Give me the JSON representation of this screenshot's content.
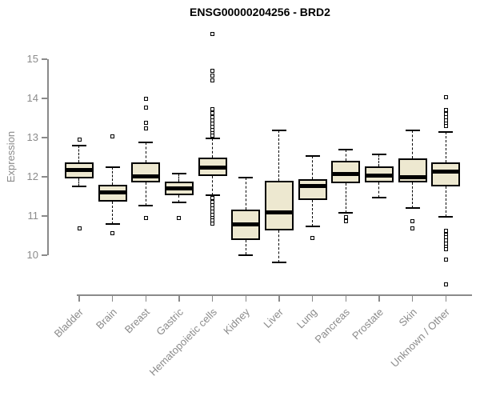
{
  "title": "ENSG00000204256 - BRD2",
  "chart_data": {
    "type": "boxplot",
    "title": "ENSG00000204256 - BRD2",
    "xlabel": "",
    "ylabel": "Expression",
    "ylim": [
      9.0,
      15.8
    ],
    "yticks": [
      10,
      11,
      12,
      13,
      14,
      15
    ],
    "grid": false,
    "categories": [
      "Bladder",
      "Brain",
      "Breast",
      "Gastric",
      "Hematopoietic cells",
      "Kidney",
      "Liver",
      "Lung",
      "Pancreas",
      "Prostate",
      "Skin",
      "Unknown / Other"
    ],
    "boxes": [
      {
        "label": "Bladder",
        "whisker_low": 11.76,
        "q1": 11.96,
        "median": 12.18,
        "q3": 12.37,
        "whisker_high": 12.8,
        "outliers": [
          12.94,
          10.69
        ]
      },
      {
        "label": "Brain",
        "whisker_low": 10.8,
        "q1": 11.37,
        "median": 11.61,
        "q3": 11.8,
        "whisker_high": 12.24,
        "outliers": [
          13.04,
          10.56
        ]
      },
      {
        "label": "Breast",
        "whisker_low": 11.27,
        "q1": 11.85,
        "median": 12.02,
        "q3": 12.37,
        "whisker_high": 12.87,
        "outliers": [
          13.98,
          13.77,
          13.38,
          13.23,
          10.95
        ]
      },
      {
        "label": "Gastric",
        "whisker_low": 11.34,
        "q1": 11.54,
        "median": 11.71,
        "q3": 11.87,
        "whisker_high": 12.09,
        "outliers": [
          10.95
        ]
      },
      {
        "label": "Hematopoietic cells",
        "whisker_low": 11.54,
        "q1": 12.02,
        "median": 12.23,
        "q3": 12.48,
        "whisker_high": 12.97,
        "outliers": [
          15.64,
          14.7,
          14.58,
          14.45,
          13.72,
          13.62,
          13.52,
          13.44,
          13.36,
          13.28,
          13.2,
          13.12,
          13.05,
          11.45,
          11.35,
          11.27,
          11.19,
          11.11,
          11.03,
          10.95,
          10.88,
          10.81
        ]
      },
      {
        "label": "Kidney",
        "whisker_low": 10.01,
        "q1": 10.39,
        "median": 10.78,
        "q3": 11.17,
        "whisker_high": 11.97,
        "outliers": []
      },
      {
        "label": "Liver",
        "whisker_low": 9.81,
        "q1": 10.63,
        "median": 11.1,
        "q3": 11.9,
        "whisker_high": 13.19,
        "outliers": []
      },
      {
        "label": "Lung",
        "whisker_low": 10.74,
        "q1": 11.41,
        "median": 11.77,
        "q3": 11.94,
        "whisker_high": 12.53,
        "outliers": [
          10.43
        ]
      },
      {
        "label": "Pancreas",
        "whisker_low": 11.08,
        "q1": 11.83,
        "median": 12.07,
        "q3": 12.4,
        "whisker_high": 12.7,
        "outliers": [
          10.97,
          10.86
        ]
      },
      {
        "label": "Prostate",
        "whisker_low": 11.47,
        "q1": 11.86,
        "median": 12.04,
        "q3": 12.27,
        "whisker_high": 12.57,
        "outliers": []
      },
      {
        "label": "Skin",
        "whisker_low": 11.21,
        "q1": 11.86,
        "median": 11.98,
        "q3": 12.46,
        "whisker_high": 13.19,
        "outliers": [
          10.86,
          10.69
        ]
      },
      {
        "label": "Unknown / Other",
        "whisker_low": 10.97,
        "q1": 11.76,
        "median": 12.14,
        "q3": 12.37,
        "whisker_high": 13.14,
        "outliers": [
          14.04,
          13.7,
          13.6,
          13.52,
          13.44,
          13.36,
          13.3,
          10.62,
          10.53,
          10.45,
          10.38,
          10.3,
          10.22,
          10.15,
          9.89,
          9.25
        ]
      }
    ],
    "colors": {
      "box_fill": "#ede8d0",
      "box_border": "#000000",
      "median": "#000000",
      "axis": "#8a8a8a",
      "axis_text": "#8b8b8b",
      "title_text": "#000000"
    }
  }
}
